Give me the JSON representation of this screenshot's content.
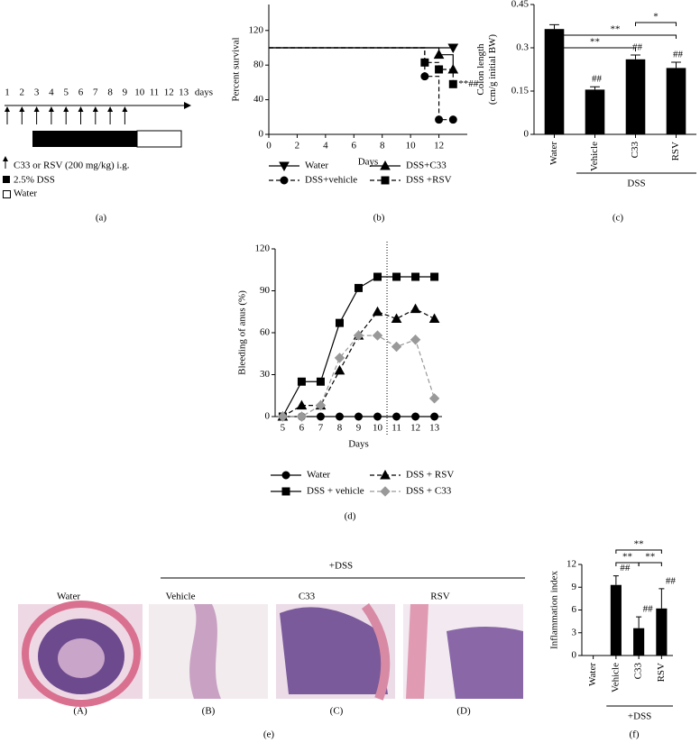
{
  "timeline": {
    "days": [
      1,
      2,
      3,
      4,
      5,
      6,
      7,
      8,
      9,
      10,
      11,
      12,
      13
    ],
    "unit": "days",
    "legend": [
      "C33 or RSV (200 mg/kg) i.g.",
      "2.5% DSS",
      "Water"
    ],
    "panel_label": "(a)"
  },
  "chart_data": [
    {
      "type": "step",
      "panel_label": "(b)",
      "xlabel": "Days",
      "ylabel": "Percent survival",
      "x": [
        0,
        11,
        12,
        13
      ],
      "xlim": [
        0,
        14
      ],
      "xticks": [
        0,
        2,
        4,
        6,
        8,
        10,
        12
      ],
      "ylim": [
        0,
        150
      ],
      "yticks": [
        0,
        40,
        80,
        120
      ],
      "series": [
        {
          "name": "Water",
          "color": "#000000",
          "marker": "triangle-down",
          "dashed": false,
          "values": [
            100,
            100,
            100,
            100
          ]
        },
        {
          "name": "DSS+C33",
          "color": "#000000",
          "marker": "triangle",
          "dashed": false,
          "values": [
            100,
            100,
            92,
            75
          ]
        },
        {
          "name": "DSS+vehicle",
          "color": "#000000",
          "marker": "circle",
          "dashed": true,
          "values": [
            100,
            67,
            17,
            17
          ]
        },
        {
          "name": "DSS +RSV",
          "color": "#000000",
          "marker": "square",
          "dashed": true,
          "values": [
            100,
            83,
            75,
            58
          ]
        }
      ],
      "annotation": "**##"
    },
    {
      "type": "bar",
      "panel_label": "(c)",
      "ylabel": [
        "Colon length",
        "(cm/g initial BW)"
      ],
      "categories": [
        "Water",
        "Vehicle",
        "C33",
        "RSV"
      ],
      "values": [
        0.365,
        0.155,
        0.26,
        0.23
      ],
      "errors": [
        0.015,
        0.01,
        0.015,
        0.02
      ],
      "color": "#000000",
      "ylim": [
        0,
        0.45
      ],
      "yticks": [
        0,
        0.15,
        0.3,
        0.45
      ],
      "value_annotations": [
        null,
        "##",
        "##",
        "##"
      ],
      "group": {
        "label": "DSS",
        "span": [
          1,
          3
        ]
      },
      "comparisons": [
        {
          "between": [
            2,
            3
          ],
          "label": "*",
          "level": 0
        },
        {
          "between": [
            0,
            3
          ],
          "label": "**",
          "level": 1
        },
        {
          "between": [
            0,
            2
          ],
          "label": "**",
          "level": 2
        }
      ]
    },
    {
      "type": "line",
      "panel_label": "(d)",
      "xlabel": "Days",
      "ylabel": "Bleeding of anus (%)",
      "x": [
        5,
        6,
        7,
        8,
        9,
        10,
        11,
        12,
        13
      ],
      "xlim": [
        4.6,
        13.4
      ],
      "xticks": [
        5,
        6,
        7,
        8,
        9,
        10,
        11,
        12,
        13
      ],
      "ylim": [
        0,
        120
      ],
      "yticks": [
        0,
        30,
        60,
        90,
        120
      ],
      "reference_line_x": 10.5,
      "series": [
        {
          "name": "Water",
          "color": "#000000",
          "marker": "circle",
          "dashed": false,
          "values": [
            0,
            0,
            0,
            0,
            0,
            0,
            0,
            0,
            0
          ]
        },
        {
          "name": "DSS + RSV",
          "color": "#000000",
          "marker": "triangle",
          "dashed": true,
          "values": [
            0,
            8,
            8,
            33,
            58,
            75,
            70,
            77,
            70
          ]
        },
        {
          "name": "DSS + vehicle",
          "color": "#000000",
          "marker": "square",
          "dashed": false,
          "values": [
            0,
            25,
            25,
            67,
            92,
            100,
            100,
            100,
            100
          ]
        },
        {
          "name": "DSS + C33",
          "color": "#999999",
          "marker": "diamond",
          "dashed": true,
          "values": [
            0,
            0,
            8,
            42,
            58,
            58,
            50,
            55,
            13
          ]
        }
      ]
    },
    {
      "type": "bar",
      "panel_label": "(f)",
      "ylabel": [
        "Inflammation index"
      ],
      "categories": [
        "Water",
        "Vehicle",
        "C33",
        "RSV"
      ],
      "values": [
        0,
        9.3,
        3.6,
        6.2
      ],
      "errors": [
        0,
        1.2,
        1.5,
        2.6
      ],
      "color": "#000000",
      "ylim": [
        0,
        12
      ],
      "yticks": [
        0,
        3,
        6,
        9,
        12
      ],
      "value_annotations": [
        null,
        "##",
        "##",
        "##"
      ],
      "group": {
        "label": "+DSS",
        "span": [
          1,
          3
        ]
      },
      "comparisons": [
        {
          "between": [
            1,
            3
          ],
          "label": "**",
          "level": 0
        },
        {
          "between": [
            1,
            2
          ],
          "label": "**",
          "level": 1
        },
        {
          "between": [
            2,
            3
          ],
          "label": "**",
          "level": 1
        }
      ]
    }
  ],
  "histology": {
    "group_label": "+DSS",
    "columns": [
      "Water",
      "Vehicle",
      "C33",
      "RSV"
    ],
    "image_labels": [
      "(A)",
      "(B)",
      "(C)",
      "(D)"
    ],
    "panel_label": "(e)"
  }
}
